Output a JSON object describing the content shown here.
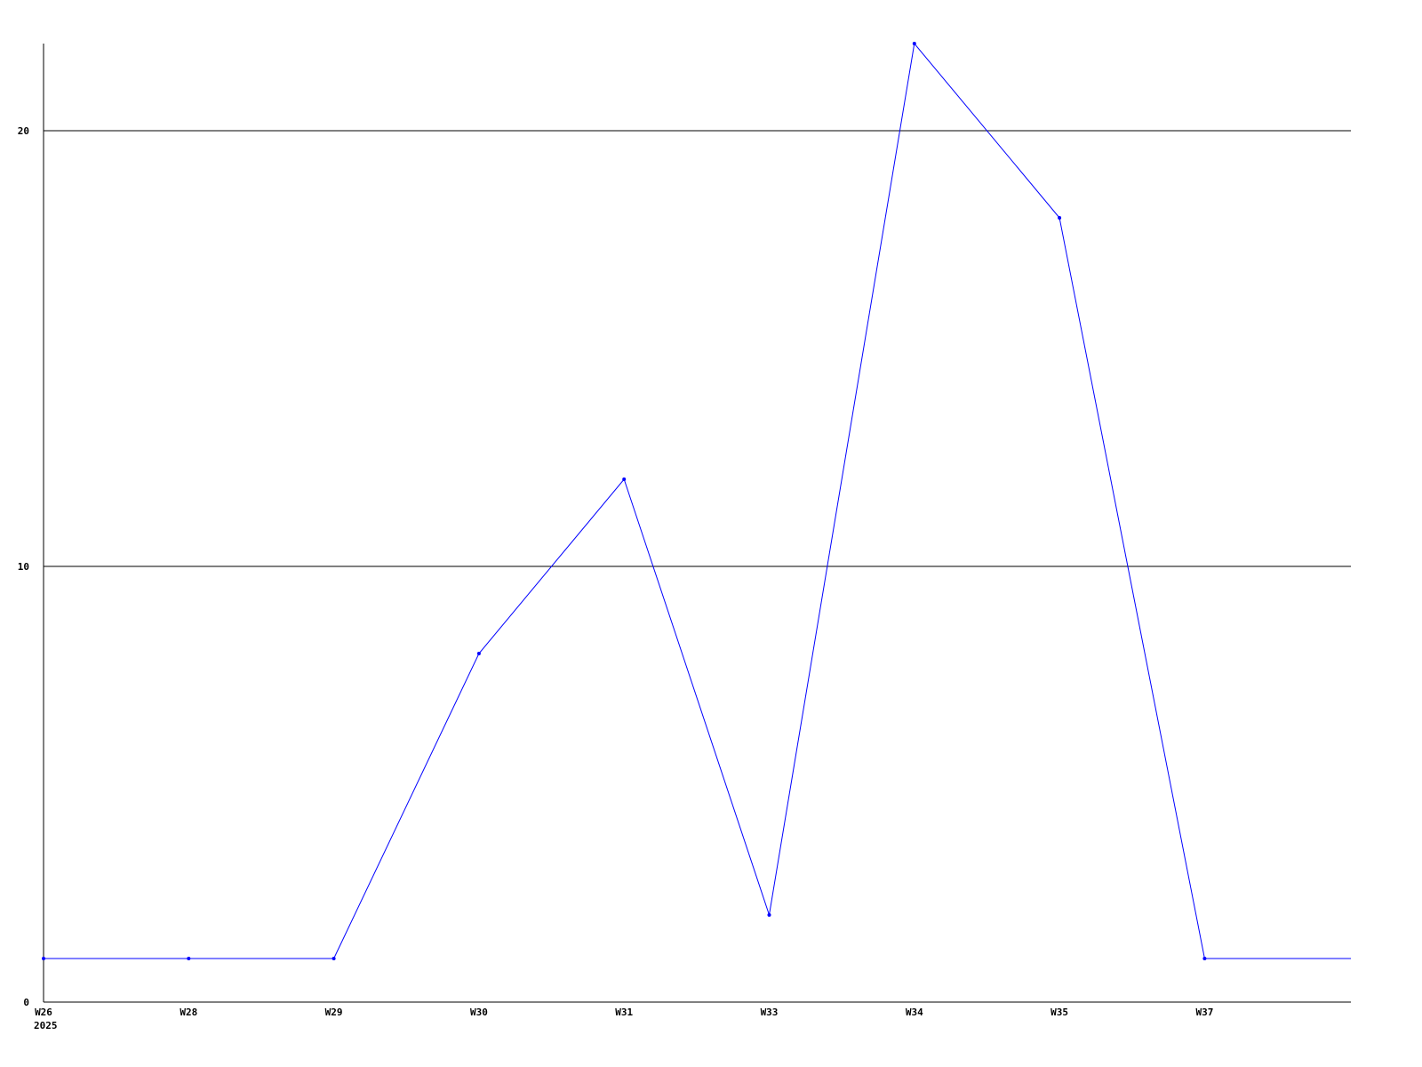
{
  "chart_data": {
    "type": "line",
    "title": "",
    "xlabel": "",
    "ylabel": "",
    "categories": [
      "W26",
      "W28",
      "W29",
      "W30",
      "W31",
      "W33",
      "W34",
      "W35",
      "W37"
    ],
    "x_year_label": "2025",
    "values": [
      1,
      1,
      1,
      8,
      12,
      2,
      22,
      18,
      1
    ],
    "ylim": [
      0,
      22
    ],
    "yticks": [
      0,
      10,
      20
    ],
    "grid": "horizontal",
    "line_color": "#0000ff",
    "axis_color": "#000000",
    "tail_continues_flat": true
  }
}
